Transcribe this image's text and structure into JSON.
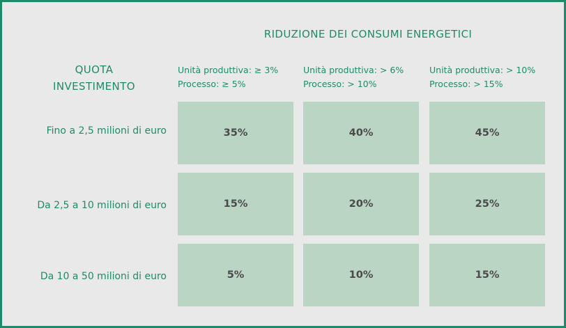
{
  "table": {
    "title": "RIDUZIONE DEI CONSUMI ENERGETICI",
    "row_header": [
      "QUOTA",
      "INVESTIMENTO"
    ],
    "columns": [
      {
        "line1": "Unità produttiva: ≥ 3%",
        "line2": "Processo: ≥ 5%"
      },
      {
        "line1": "Unità produttiva: > 6%",
        "line2": "Processo: > 10%"
      },
      {
        "line1": "Unità produttiva: > 10%",
        "line2": "Processo: > 15%"
      }
    ],
    "rows": [
      {
        "label": "Fino a 2,5 milioni di euro",
        "values": [
          "35%",
          "40%",
          "45%"
        ]
      },
      {
        "label": "Da 2,5 a 10 milioni di euro",
        "values": [
          "15%",
          "20%",
          "25%"
        ]
      },
      {
        "label": "Da 10 a 50 milioni di euro",
        "values": [
          "5%",
          "10%",
          "15%"
        ]
      }
    ],
    "colors": {
      "accent": "#1f8a6a",
      "cell_fill": "#bbd5c5",
      "background": "#e9e9e9",
      "cell_text": "#4a4a4a"
    }
  }
}
